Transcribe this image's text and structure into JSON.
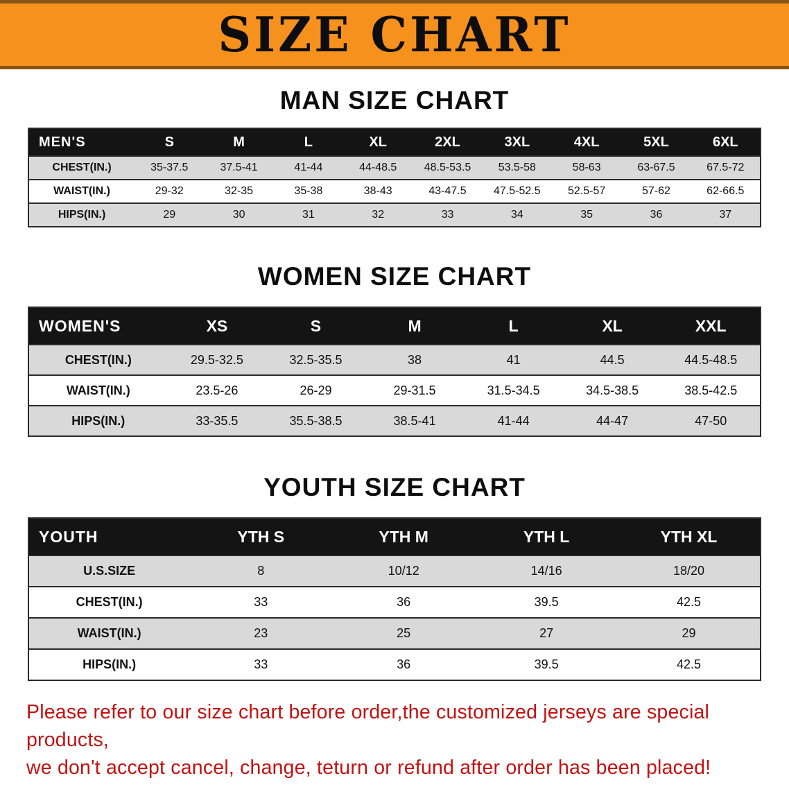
{
  "banner": {
    "title": "SIZE CHART",
    "bg_color": "#f7911d",
    "edge_color": "#8a5313",
    "text_color": "#0d0d0d"
  },
  "sections": {
    "men": {
      "heading": "MAN SIZE CHART"
    },
    "women": {
      "heading": "WOMEN SIZE CHART"
    },
    "youth": {
      "heading": "YOUTH SIZE CHART"
    }
  },
  "men_table": {
    "header": [
      "MEN'S",
      "S",
      "M",
      "L",
      "XL",
      "2XL",
      "3XL",
      "4XL",
      "5XL",
      "6XL"
    ],
    "rows": [
      {
        "label": "CHEST(IN.)",
        "values": [
          "35-37.5",
          "37.5-41",
          "41-44",
          "44-48.5",
          "48.5-53.5",
          "53.5-58",
          "58-63",
          "63-67.5",
          "67.5-72"
        ]
      },
      {
        "label": "WAIST(IN.)",
        "values": [
          "29-32",
          "32-35",
          "35-38",
          "38-43",
          "43-47.5",
          "47.5-52.5",
          "52.5-57",
          "57-62",
          "62-66.5"
        ]
      },
      {
        "label": "HIPS(IN.)",
        "values": [
          "29",
          "30",
          "31",
          "32",
          "33",
          "34",
          "35",
          "36",
          "37"
        ]
      }
    ]
  },
  "women_table": {
    "header": [
      "WOMEN'S",
      "XS",
      "S",
      "M",
      "L",
      "XL",
      "XXL"
    ],
    "rows": [
      {
        "label": "CHEST(IN.)",
        "values": [
          "29.5-32.5",
          "32.5-35.5",
          "38",
          "41",
          "44.5",
          "44.5-48.5"
        ]
      },
      {
        "label": "WAIST(IN.)",
        "values": [
          "23.5-26",
          "26-29",
          "29-31.5",
          "31.5-34.5",
          "34.5-38.5",
          "38.5-42.5"
        ]
      },
      {
        "label": "HIPS(IN.)",
        "values": [
          "33-35.5",
          "35.5-38.5",
          "38.5-41",
          "41-44",
          "44-47",
          "47-50"
        ]
      }
    ]
  },
  "youth_table": {
    "header": [
      "YOUTH",
      "YTH S",
      "YTH M",
      "YTH L",
      "YTH XL"
    ],
    "rows": [
      {
        "label": "U.S.SIZE",
        "values": [
          "8",
          "10/12",
          "14/16",
          "18/20"
        ]
      },
      {
        "label": "CHEST(IN.)",
        "values": [
          "33",
          "36",
          "39.5",
          "42.5"
        ]
      },
      {
        "label": "WAIST(IN.)",
        "values": [
          "23",
          "25",
          "27",
          "29"
        ]
      },
      {
        "label": "HIPS(IN.)",
        "values": [
          "33",
          "36",
          "39.5",
          "42.5"
        ]
      }
    ]
  },
  "disclaimer": {
    "line1": "Please refer to our size chart before order,the customized jerseys are special products,",
    "line2": "we don't accept cancel, change, teturn or refund after order has been placed!",
    "color": "#c41111"
  }
}
